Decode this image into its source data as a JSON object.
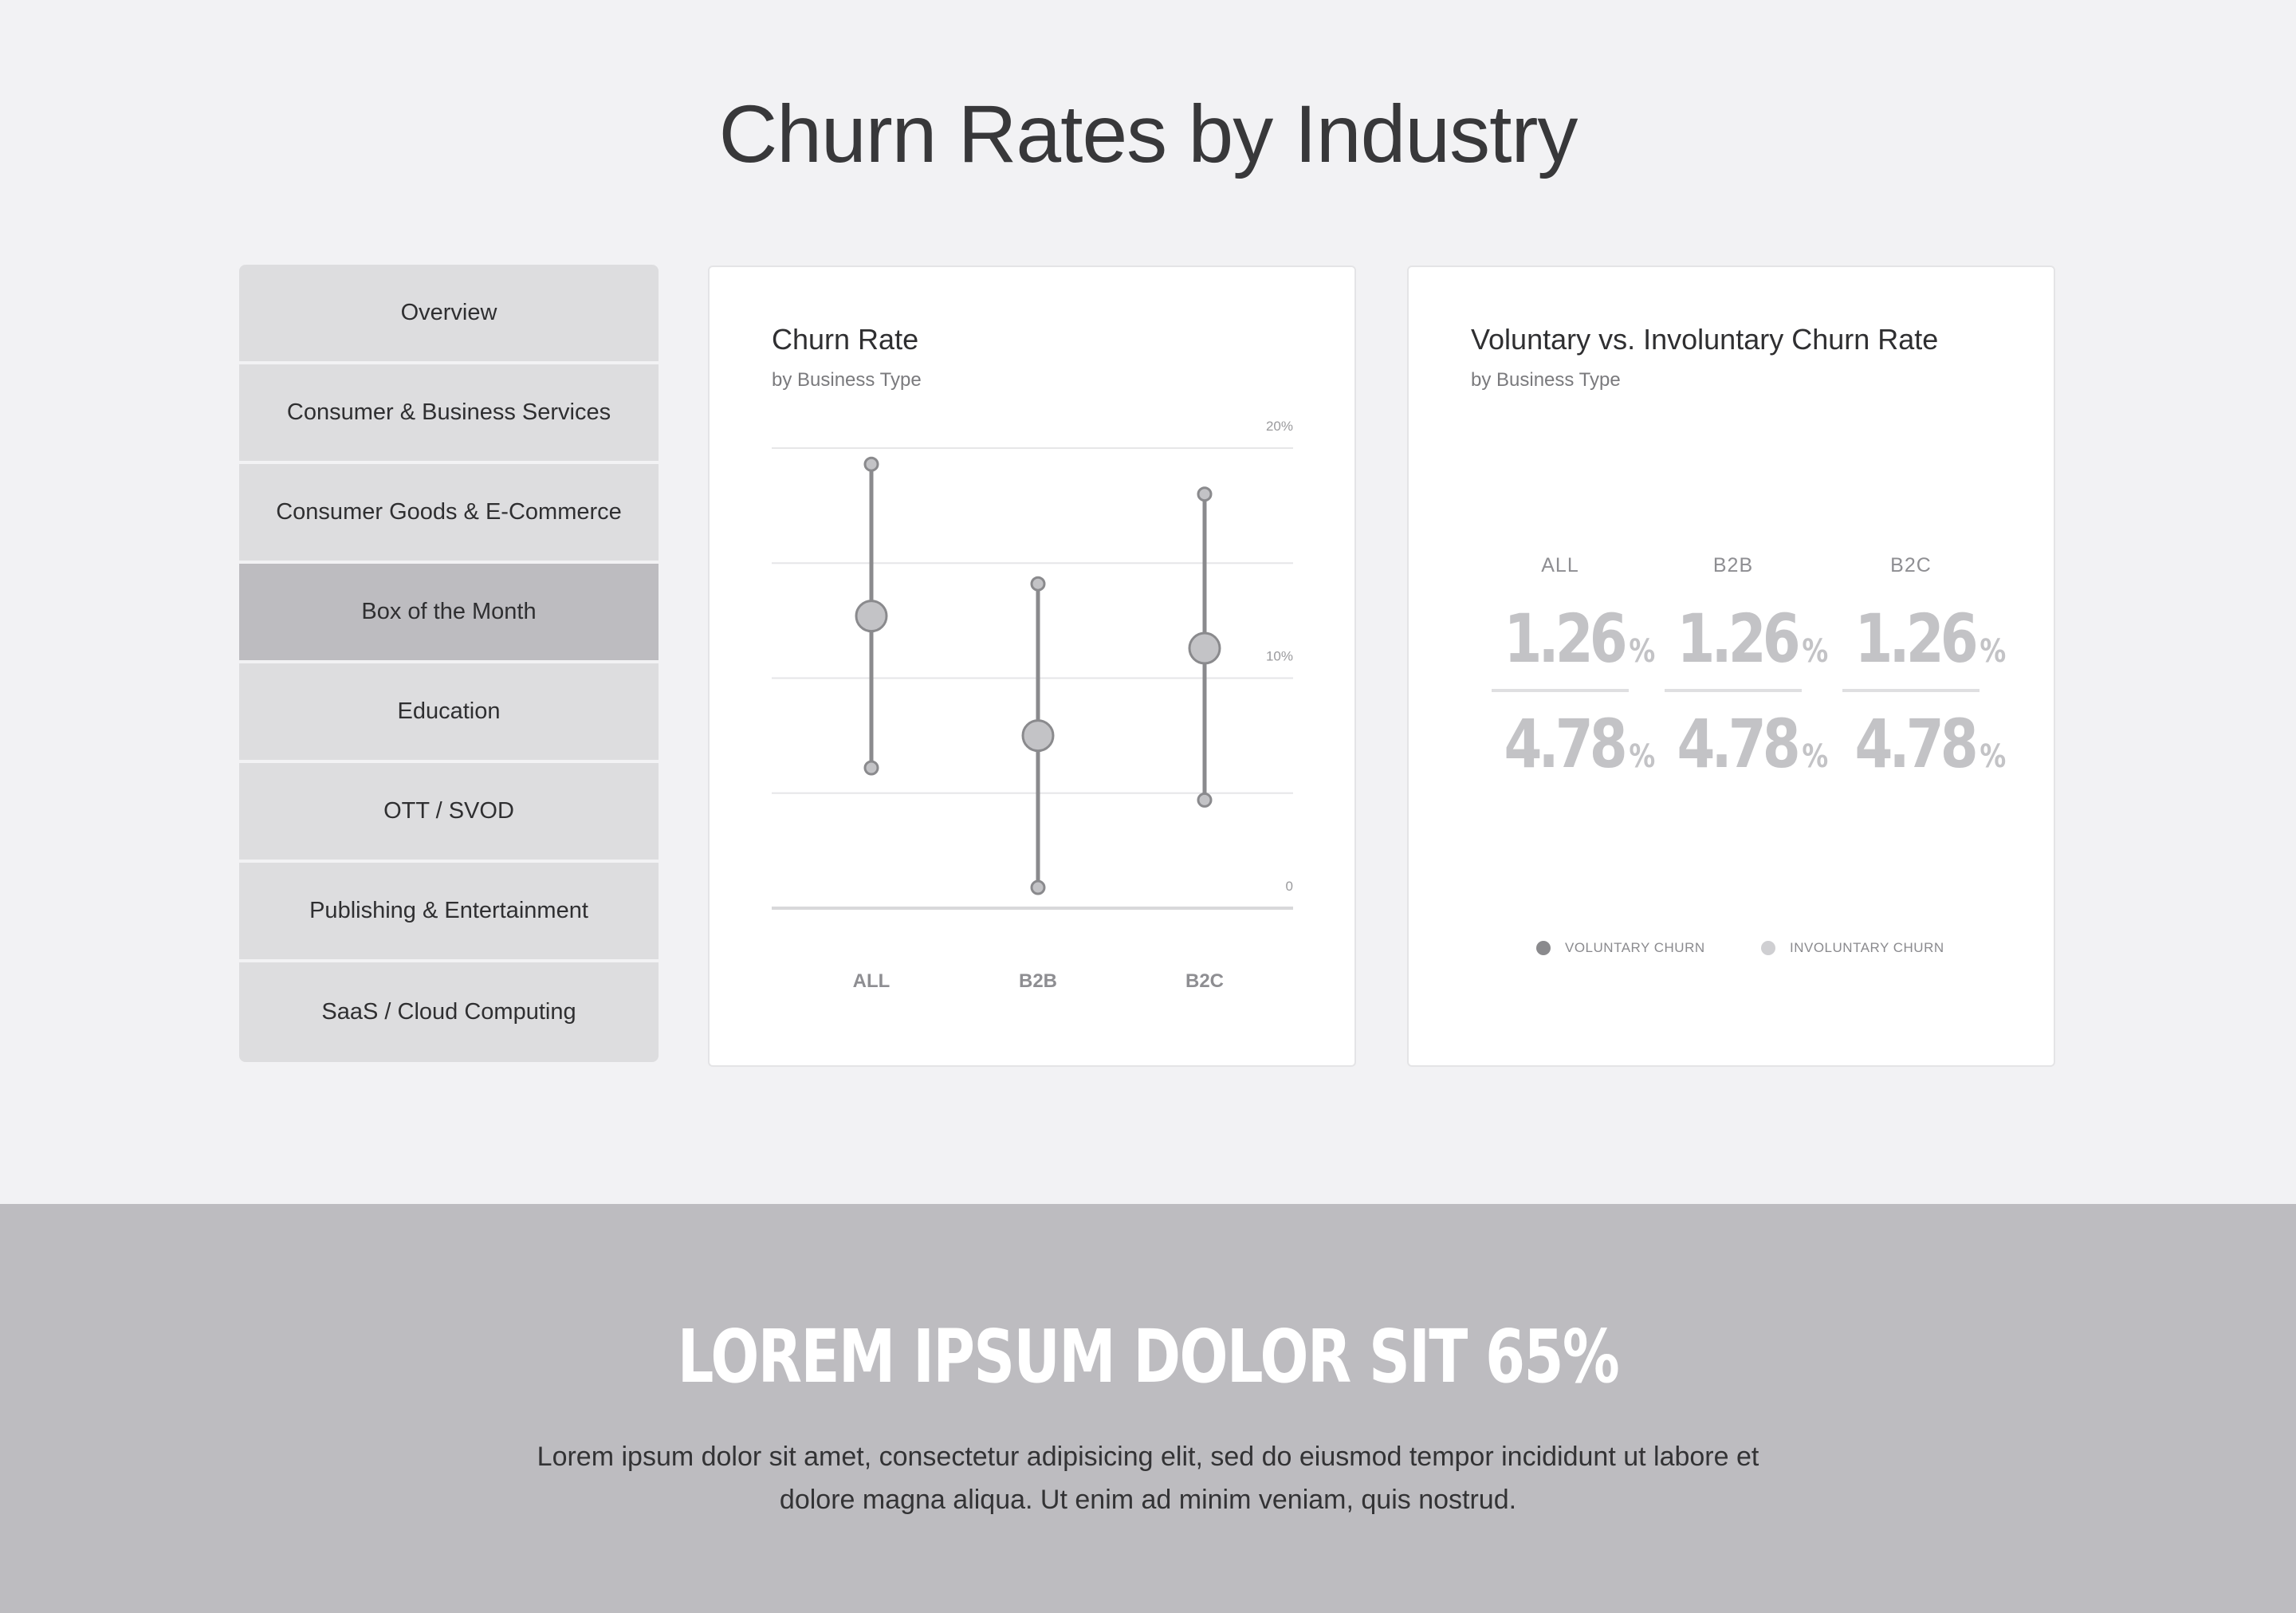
{
  "page": {
    "title": "Churn Rates by Industry"
  },
  "sidebar": {
    "items": [
      {
        "label": "Overview",
        "active": false
      },
      {
        "label": "Consumer & Business Services",
        "active": false
      },
      {
        "label": "Consumer Goods & E-Commerce",
        "active": false
      },
      {
        "label": "Box of the Month",
        "active": true
      },
      {
        "label": "Education",
        "active": false
      },
      {
        "label": "OTT / SVOD",
        "active": false
      },
      {
        "label": "Publishing & Entertainment",
        "active": false
      },
      {
        "label": "SaaS / Cloud Computing",
        "active": false
      }
    ]
  },
  "churn_card": {
    "title": "Churn Rate",
    "subtitle": "by Business Type"
  },
  "chart_data": {
    "type": "range",
    "categories": [
      "ALL",
      "B2B",
      "B2C"
    ],
    "high": [
      19.3,
      14.1,
      18.0
    ],
    "mid": [
      12.7,
      7.5,
      11.3
    ],
    "low": [
      6.1,
      0.9,
      4.7
    ],
    "ylim": [
      0,
      20
    ],
    "y_tick_labels": [
      "0",
      "10%",
      "20%"
    ],
    "y_tick_values": [
      0,
      10,
      20
    ],
    "gridlines": [
      0,
      5,
      10,
      15,
      20
    ],
    "colors": {
      "line": "#8a8a8d",
      "dot": "#c3c3c6",
      "grid": "#e6e6e8",
      "axis": "#d8d8da"
    }
  },
  "vol_card": {
    "title": "Voluntary vs. Involuntary Churn Rate",
    "subtitle": "by Business Type",
    "columns": [
      {
        "label": "ALL",
        "voluntary": "1.26",
        "involuntary": "4.78"
      },
      {
        "label": "B2B",
        "voluntary": "1.26",
        "involuntary": "4.78"
      },
      {
        "label": "B2C",
        "voluntary": "1.26",
        "involuntary": "4.78"
      }
    ],
    "percent_sign": "%",
    "legend": [
      {
        "label": "VOLUNTARY CHURN",
        "color": "#8a8a8d"
      },
      {
        "label": "INVOLUNTARY CHURN",
        "color": "#cfcfd2"
      }
    ]
  },
  "footer": {
    "heading": "LOREM IPSUM DOLOR SIT 65%",
    "body": "Lorem ipsum dolor sit amet, consectetur adipisicing elit, sed do eiusmod tempor incididunt ut labore et dolore magna aliqua. Ut enim ad minim veniam, quis nostrud."
  }
}
